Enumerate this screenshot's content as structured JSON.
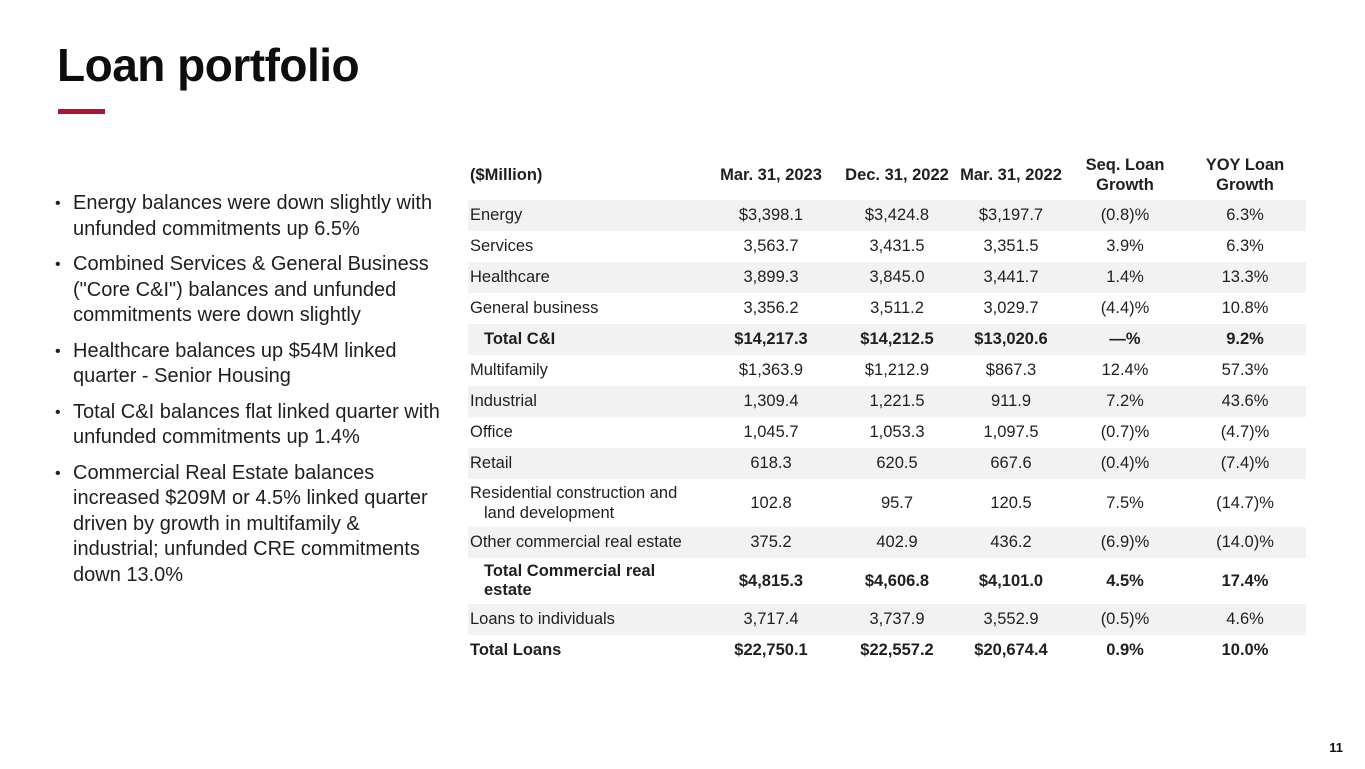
{
  "accent_color": "#B01235",
  "title": "Loan portfolio",
  "page_number": "11",
  "bullets": [
    "Energy balances were down slightly with unfunded commitments up 6.5%",
    "Combined Services & General Business (\"Core C&I\") balances and unfunded commitments were down slightly",
    "Healthcare balances up $54M linked quarter - Senior Housing",
    "Total C&I balances flat linked quarter with unfunded commitments up 1.4%",
    "Commercial Real Estate balances increased $209M or 4.5% linked quarter driven by growth in multifamily & industrial; unfunded CRE commitments down 13.0%"
  ],
  "table": {
    "unit_label": "($Million)",
    "columns": [
      "Mar. 31, 2023",
      "Dec. 31, 2022",
      "Mar. 31, 2022",
      "Seq. Loan Growth",
      "YOY Loan Growth"
    ],
    "rows": [
      {
        "label": "Energy",
        "v1": "$3,398.1",
        "v2": "$3,424.8",
        "v3": "$3,197.7",
        "seq": "(0.8)%",
        "yoy": "6.3%"
      },
      {
        "label": "Services",
        "v1": "3,563.7",
        "v2": "3,431.5",
        "v3": "3,351.5",
        "seq": "3.9%",
        "yoy": "6.3%"
      },
      {
        "label": "Healthcare",
        "v1": "3,899.3",
        "v2": "3,845.0",
        "v3": "3,441.7",
        "seq": "1.4%",
        "yoy": "13.3%"
      },
      {
        "label": "General business",
        "v1": "3,356.2",
        "v2": "3,511.2",
        "v3": "3,029.7",
        "seq": "(4.4)%",
        "yoy": "10.8%"
      },
      {
        "label": "Total C&I",
        "v1": "$14,217.3",
        "v2": "$14,212.5",
        "v3": "$13,020.6",
        "seq": "—%",
        "yoy": "9.2%"
      },
      {
        "label": "Multifamily",
        "v1": "$1,363.9",
        "v2": "$1,212.9",
        "v3": "$867.3",
        "seq": "12.4%",
        "yoy": "57.3%"
      },
      {
        "label": "Industrial",
        "v1": "1,309.4",
        "v2": "1,221.5",
        "v3": "911.9",
        "seq": "7.2%",
        "yoy": "43.6%"
      },
      {
        "label": "Office",
        "v1": "1,045.7",
        "v2": "1,053.3",
        "v3": "1,097.5",
        "seq": "(0.7)%",
        "yoy": "(4.7)%"
      },
      {
        "label": "Retail",
        "v1": "618.3",
        "v2": "620.5",
        "v3": "667.6",
        "seq": "(0.4)%",
        "yoy": "(7.4)%"
      },
      {
        "label": "Residential construction and land development",
        "v1": "102.8",
        "v2": "95.7",
        "v3": "120.5",
        "seq": "7.5%",
        "yoy": "(14.7)%"
      },
      {
        "label": "Other commercial real estate",
        "v1": "375.2",
        "v2": "402.9",
        "v3": "436.2",
        "seq": "(6.9)%",
        "yoy": "(14.0)%"
      },
      {
        "label": "Total Commercial real estate",
        "v1": "$4,815.3",
        "v2": "$4,606.8",
        "v3": "$4,101.0",
        "seq": "4.5%",
        "yoy": "17.4%"
      },
      {
        "label": "Loans to individuals",
        "v1": "3,717.4",
        "v2": "3,737.9",
        "v3": "3,552.9",
        "seq": "(0.5)%",
        "yoy": "4.6%"
      },
      {
        "label": "Total Loans",
        "v1": "$22,750.1",
        "v2": "$22,557.2",
        "v3": "$20,674.4",
        "seq": "0.9%",
        "yoy": "10.0%"
      }
    ]
  }
}
